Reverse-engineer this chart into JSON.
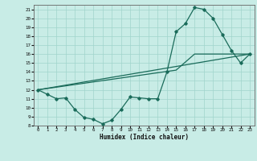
{
  "xlabel": "Humidex (Indice chaleur)",
  "bg_color": "#c8ece6",
  "line_color": "#1a6b5a",
  "grid_color": "#a0d4cc",
  "xlim": [
    -0.5,
    23.5
  ],
  "ylim": [
    8,
    21.5
  ],
  "xticks": [
    0,
    1,
    2,
    3,
    4,
    5,
    6,
    7,
    8,
    9,
    10,
    11,
    12,
    13,
    14,
    15,
    16,
    17,
    18,
    19,
    20,
    21,
    22,
    23
  ],
  "yticks": [
    8,
    9,
    10,
    11,
    12,
    13,
    14,
    15,
    16,
    17,
    18,
    19,
    20,
    21
  ],
  "line1_x": [
    0,
    1,
    2,
    3,
    4,
    5,
    6,
    7,
    8,
    9,
    10,
    11,
    12,
    13,
    14,
    15,
    16,
    17,
    18,
    19,
    20,
    21,
    22,
    23
  ],
  "line1_y": [
    12,
    11.5,
    11.0,
    11.1,
    9.8,
    8.9,
    8.7,
    8.2,
    8.6,
    9.8,
    11.2,
    11.1,
    11.0,
    11.0,
    14.0,
    18.5,
    19.4,
    21.2,
    21.0,
    20.0,
    18.2,
    16.4,
    15.0,
    16.0
  ],
  "line2_x": [
    0,
    23
  ],
  "line2_y": [
    12,
    16.0
  ],
  "line3_x": [
    0,
    15,
    17,
    23
  ],
  "line3_y": [
    12,
    14.2,
    16.0,
    16.0
  ]
}
